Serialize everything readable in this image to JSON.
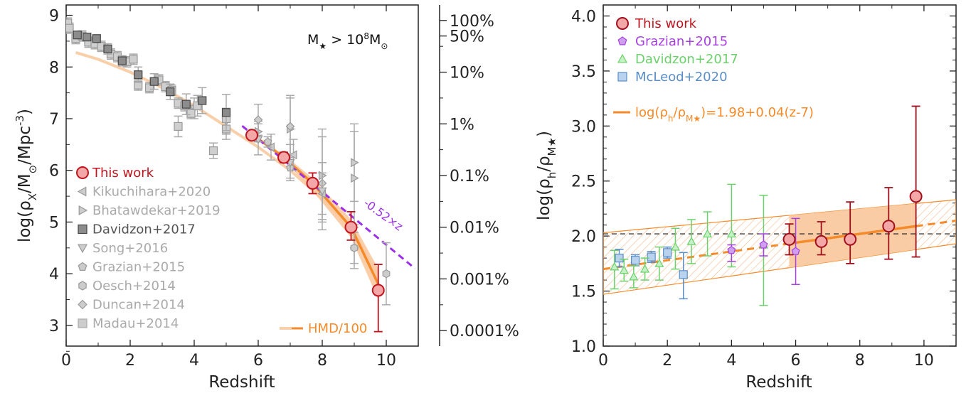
{
  "chart_data": [
    {
      "type": "scatter",
      "xlabel": "Redshift",
      "ylabel": "log(ρX/M⊙/Mpc-3)",
      "xlim": [
        0,
        11
      ],
      "ylim": [
        2.6,
        9.2
      ],
      "xticks": [
        "0",
        "2",
        "4",
        "6",
        "8",
        "10"
      ],
      "yticks": [
        "3",
        "4",
        "5",
        "6",
        "7",
        "8",
        "9"
      ],
      "annotation_mass": "M★ > 10⁸M⊙",
      "slope_label": "-0.52×z",
      "right_axis_labels": [
        "100%",
        "50%",
        "10%",
        "1%",
        "0.1%",
        "0.01%",
        "0.001%",
        "0.0001%"
      ],
      "right_axis_values": [
        8.9,
        8.6,
        7.9,
        6.9,
        5.9,
        4.9,
        3.9,
        2.9
      ],
      "legend": [
        "This work",
        "Kikuchihara+2020",
        "Bhatawdekar+2019",
        "Davidzon+2017",
        "Song+2016",
        "Grazian+2015",
        "Oesch+2014",
        "Duncan+2014",
        "Madau+2014",
        "HMD/100"
      ],
      "series": [
        {
          "name": "This work",
          "color": "#c0141e",
          "fill": "#f4a7a7",
          "marker": "circle",
          "points": [
            [
              5.8,
              6.68,
              0.06,
              0.06
            ],
            [
              6.8,
              6.25,
              0.1,
              0.1
            ],
            [
              7.7,
              5.75,
              0.2,
              0.2
            ],
            [
              8.9,
              4.9,
              0.25,
              0.3
            ],
            [
              9.75,
              3.68,
              0.8,
              0.5
            ]
          ]
        },
        {
          "name": "Davidzon+2017",
          "color": "#555555",
          "fill": "#8c8c8c",
          "marker": "square",
          "points": [
            [
              0.35,
              8.62,
              0.05,
              0.05
            ],
            [
              0.65,
              8.58,
              0.05,
              0.05
            ],
            [
              0.95,
              8.55,
              0.05,
              0.05
            ],
            [
              1.3,
              8.35,
              0.1,
              0.1
            ],
            [
              1.75,
              8.12,
              0.1,
              0.1
            ],
            [
              2.25,
              7.85,
              0.15,
              0.15
            ],
            [
              2.75,
              7.72,
              0.15,
              0.15
            ],
            [
              3.25,
              7.52,
              0.15,
              0.15
            ],
            [
              3.75,
              7.28,
              0.2,
              0.2
            ],
            [
              4.25,
              7.35,
              0.25,
              0.25
            ],
            [
              5.0,
              7.12,
              0.35,
              0.35
            ]
          ]
        },
        {
          "name": "Madau+2014",
          "color": "#bbbbbb",
          "fill": "#cfcfcf",
          "marker": "square",
          "points": [
            [
              0.05,
              8.85,
              0.1,
              0.1
            ],
            [
              0.1,
              8.75,
              0.1,
              0.1
            ],
            [
              0.3,
              8.55,
              0.1,
              0.1
            ],
            [
              0.5,
              8.6,
              0.1,
              0.1
            ],
            [
              0.7,
              8.48,
              0.1,
              0.1
            ],
            [
              0.9,
              8.45,
              0.1,
              0.1
            ],
            [
              1.1,
              8.4,
              0.1,
              0.1
            ],
            [
              1.4,
              8.25,
              0.1,
              0.1
            ],
            [
              1.6,
              8.2,
              0.1,
              0.1
            ],
            [
              1.9,
              8.1,
              0.1,
              0.1
            ],
            [
              2.1,
              8.15,
              0.1,
              0.1
            ],
            [
              2.25,
              7.65,
              0.1,
              0.1
            ],
            [
              2.6,
              7.6,
              0.1,
              0.1
            ],
            [
              2.9,
              7.75,
              0.1,
              0.1
            ],
            [
              3.1,
              7.62,
              0.1,
              0.1
            ],
            [
              3.3,
              7.55,
              0.1,
              0.1
            ],
            [
              3.5,
              7.3,
              0.1,
              0.1
            ],
            [
              3.7,
              7.25,
              0.1,
              0.1
            ],
            [
              3.9,
              7.1,
              0.1,
              0.1
            ],
            [
              4.1,
              7.25,
              0.2,
              0.2
            ],
            [
              3.5,
              6.85,
              0.2,
              0.2
            ],
            [
              4.6,
              6.38,
              0.15,
              0.15
            ],
            [
              5.0,
              6.8,
              0.2,
              0.2
            ],
            [
              5.0,
              7.0,
              0.2,
              0.2
            ]
          ]
        },
        {
          "name": "Song+2016",
          "color": "#aaaaaa",
          "fill": "#cccccc",
          "marker": "triangle-down",
          "points": [
            [
              4.0,
              7.2,
              0.2,
              0.2
            ],
            [
              5.0,
              6.95,
              0.25,
              0.25
            ],
            [
              6.0,
              6.6,
              0.3,
              0.3
            ],
            [
              7.0,
              6.15,
              0.35,
              0.35
            ],
            [
              8.0,
              5.6,
              0.55,
              0.55
            ]
          ]
        },
        {
          "name": "Grazian+2015",
          "color": "#aaaaaa",
          "fill": "#cccccc",
          "marker": "pentagon",
          "points": [
            [
              5.95,
              6.62,
              0.05,
              0.05
            ],
            [
              6.3,
              6.55,
              0.1,
              0.1
            ],
            [
              7.0,
              6.05,
              0.2,
              0.2
            ]
          ]
        },
        {
          "name": "Oesch+2014",
          "color": "#aaaaaa",
          "fill": "#cccccc",
          "marker": "hexagon",
          "points": [
            [
              9.0,
              4.5,
              0.3,
              0.3
            ],
            [
              10.0,
              4.0,
              0.6,
              0.6
            ]
          ]
        },
        {
          "name": "Duncan+2014",
          "color": "#aaaaaa",
          "fill": "#cccccc",
          "marker": "diamond",
          "points": [
            [
              6.0,
              6.98,
              0.3,
              0.3
            ],
            [
              7.0,
              6.85,
              0.6,
              0.6
            ],
            [
              8.0,
              5.75,
              0.9,
              0.9
            ],
            [
              9.0,
              4.5,
              0.4,
              0.4
            ]
          ]
        },
        {
          "name": "Kikuchihara+2020",
          "color": "#aaaaaa",
          "fill": "#cccccc",
          "marker": "triangle-left",
          "points": [
            [
              6.4,
              6.45,
              0.25,
              0.25
            ],
            [
              7.1,
              6.3,
              0.3,
              0.3
            ],
            [
              8.0,
              5.55,
              0.4,
              0.4
            ]
          ]
        },
        {
          "name": "Bhatawdekar+2019",
          "color": "#aaaaaa",
          "fill": "#cccccc",
          "marker": "triangle-right",
          "points": [
            [
              6.0,
              6.75,
              0.2,
              0.2
            ],
            [
              7.0,
              6.8,
              0.6,
              0.6
            ],
            [
              8.0,
              5.9,
              0.9,
              0.9
            ],
            [
              9.0,
              6.15,
              0.75,
              0.75
            ],
            [
              9.0,
              5.85,
              0.9,
              0.9
            ]
          ]
        }
      ],
      "hmd_curve": {
        "name": "HMD/100",
        "x": [
          0.3,
          1,
          2,
          3,
          4,
          5,
          6,
          7,
          8,
          9,
          9.7
        ],
        "y": [
          8.28,
          8.15,
          7.9,
          7.6,
          7.25,
          6.85,
          6.45,
          6.0,
          5.45,
          4.8,
          4.0
        ]
      },
      "fit_curve": {
        "x": [
          5.8,
          6.8,
          7.7,
          8.9,
          9.75
        ],
        "y": [
          6.7,
          6.25,
          5.75,
          4.9,
          3.8
        ],
        "upper": [
          6.72,
          6.3,
          5.85,
          5.05,
          4.1
        ],
        "lower": [
          6.68,
          6.2,
          5.6,
          4.7,
          3.5
        ]
      },
      "slope_line": {
        "x": [
          5.5,
          10.9
        ],
        "y": [
          6.86,
          4.1
        ]
      }
    },
    {
      "type": "scatter",
      "xlabel": "Redshift",
      "ylabel": "log(ρh/ρM★)",
      "xlim": [
        0,
        11
      ],
      "ylim": [
        1.0,
        4.1
      ],
      "xticks": [
        "0",
        "2",
        "4",
        "6",
        "8",
        "10"
      ],
      "yticks": [
        "1.0",
        "1.5",
        "2.0",
        "2.5",
        "3.0",
        "3.5",
        "4.0"
      ],
      "fit_label": "log(ρh/ρM★)=1.98+0.04(z-7)",
      "legend": [
        "This work",
        "Grazian+2015",
        "Davidzon+2017",
        "McLeod+2020"
      ],
      "series": [
        {
          "name": "This work",
          "color": "#a00f1c",
          "fill": "#f4a7a7",
          "marker": "circle",
          "points": [
            [
              5.8,
              1.97,
              0.14,
              0.14
            ],
            [
              6.8,
              1.95,
              0.12,
              0.18
            ],
            [
              7.7,
              1.97,
              0.22,
              0.34
            ],
            [
              8.9,
              2.09,
              0.3,
              0.35
            ],
            [
              9.75,
              2.36,
              0.55,
              0.82
            ]
          ]
        },
        {
          "name": "Grazian+2015",
          "color": "#a640e0",
          "fill": "#cf9ff0",
          "marker": "pentagon",
          "points": [
            [
              4.0,
              1.87,
              0.1,
              0.05
            ],
            [
              5.0,
              1.92,
              0.1,
              0.1
            ],
            [
              6.0,
              1.86,
              0.3,
              0.3
            ]
          ]
        },
        {
          "name": "Davidzon+2017",
          "color": "#6cd06c",
          "fill": "#c6f0c6",
          "marker": "triangle",
          "points": [
            [
              0.35,
              1.72,
              0.2,
              0.15
            ],
            [
              0.65,
              1.69,
              0.1,
              0.1
            ],
            [
              0.95,
              1.63,
              0.1,
              0.1
            ],
            [
              1.3,
              1.7,
              0.1,
              0.1
            ],
            [
              1.75,
              1.75,
              0.15,
              0.15
            ],
            [
              2.25,
              1.9,
              0.2,
              0.17
            ],
            [
              2.75,
              1.95,
              0.2,
              0.2
            ],
            [
              3.25,
              2.02,
              0.2,
              0.2
            ],
            [
              4.0,
              2.02,
              0.3,
              0.45
            ],
            [
              5.0,
              1.92,
              0.55,
              0.45
            ]
          ]
        },
        {
          "name": "McLeod+2020",
          "color": "#5b8ec6",
          "fill": "#b9d3ee",
          "marker": "square",
          "points": [
            [
              0.5,
              1.8,
              0.08,
              0.08
            ],
            [
              1.0,
              1.78,
              0.05,
              0.05
            ],
            [
              1.5,
              1.81,
              0.05,
              0.05
            ],
            [
              2.0,
              1.85,
              0.05,
              0.05
            ],
            [
              2.5,
              1.65,
              0.22,
              0.2
            ]
          ]
        }
      ],
      "fit_line": {
        "intercept": 1.98,
        "slope": 0.04,
        "pivot": 7,
        "x": [
          0,
          11
        ]
      },
      "fit_band": {
        "upper": [
          2.03,
          2.33
        ],
        "lower": [
          1.47,
          1.93
        ],
        "x": [
          0,
          11
        ]
      },
      "hatched_regions": [
        [
          0,
          5.8
        ],
        [
          9.75,
          11
        ]
      ],
      "reference_line_y": 2.02
    }
  ]
}
